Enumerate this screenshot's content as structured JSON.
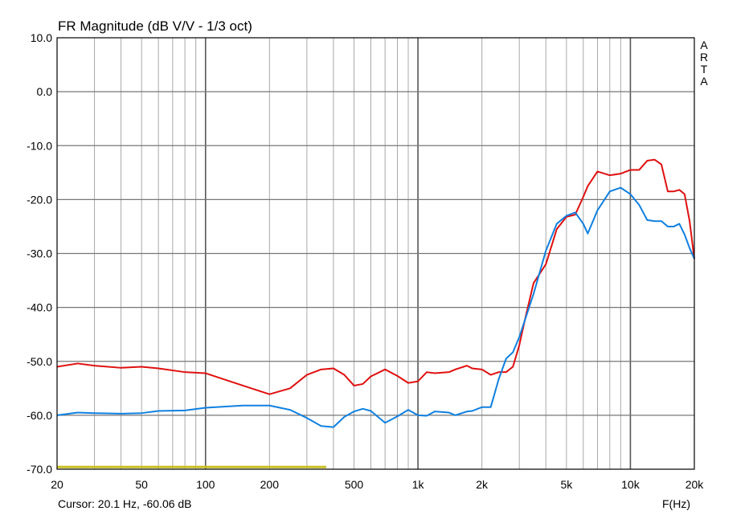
{
  "chart_data": {
    "type": "line",
    "title": "FR Magnitude (dB V/V - 1/3 oct)",
    "xlabel": "F(Hz)",
    "ylabel": "",
    "x_scale": "log",
    "xlim": [
      20,
      20000
    ],
    "ylim": [
      -70,
      10
    ],
    "grid": true,
    "watermark": [
      "A",
      "R",
      "T",
      "A"
    ],
    "cursor_text": "Cursor: 20.1 Hz, -60.06 dB",
    "x_ticks": [
      {
        "value": 20,
        "label": "20"
      },
      {
        "value": 50,
        "label": "50"
      },
      {
        "value": 100,
        "label": "100"
      },
      {
        "value": 200,
        "label": "200"
      },
      {
        "value": 500,
        "label": "500"
      },
      {
        "value": 1000,
        "label": "1k"
      },
      {
        "value": 2000,
        "label": "2k"
      },
      {
        "value": 5000,
        "label": "5k"
      },
      {
        "value": 10000,
        "label": "10k"
      },
      {
        "value": 20000,
        "label": "20k"
      }
    ],
    "y_ticks": [
      {
        "value": 10,
        "label": "10.0"
      },
      {
        "value": 0,
        "label": "0.0"
      },
      {
        "value": -10,
        "label": "-10.0"
      },
      {
        "value": -20,
        "label": "-20.0"
      },
      {
        "value": -30,
        "label": "-30.0"
      },
      {
        "value": -40,
        "label": "-40.0"
      },
      {
        "value": -50,
        "label": "-50.0"
      },
      {
        "value": -60,
        "label": "-60.0"
      },
      {
        "value": -70,
        "label": "-70.0"
      }
    ],
    "series": [
      {
        "color": "#e01010",
        "x": [
          20,
          25,
          30,
          40,
          50,
          60,
          80,
          100,
          150,
          200,
          250,
          300,
          350,
          400,
          450,
          500,
          550,
          600,
          700,
          800,
          900,
          1000,
          1100,
          1200,
          1400,
          1500,
          1700,
          1800,
          2000,
          2200,
          2400,
          2600,
          2800,
          3000,
          3200,
          3500,
          4000,
          4500,
          5000,
          5500,
          6000,
          6300,
          7000,
          8000,
          9000,
          10000,
          11000,
          12000,
          13000,
          14000,
          15000,
          16000,
          17000,
          18000,
          19000,
          20000
        ],
        "y": [
          -51,
          -50.4,
          -50.8,
          -51.2,
          -51,
          -51.3,
          -52,
          -52.2,
          -54.5,
          -56.1,
          -55,
          -52.5,
          -51.5,
          -51.3,
          -52.5,
          -54.5,
          -54.2,
          -52.8,
          -51.5,
          -52.7,
          -54,
          -53.7,
          -52,
          -52.2,
          -52,
          -51.5,
          -50.8,
          -51.3,
          -51.5,
          -52.5,
          -52,
          -52,
          -51,
          -47,
          -42,
          -35.5,
          -32,
          -25.5,
          -23.2,
          -22.8,
          -19.5,
          -17.5,
          -14.8,
          -15.5,
          -15.2,
          -14.5,
          -14.5,
          -12.8,
          -12.6,
          -13.5,
          -18.5,
          -18.5,
          -18.2,
          -19,
          -24,
          -31
        ]
      },
      {
        "color": "#1080e0",
        "x": [
          20,
          25,
          30,
          40,
          50,
          60,
          80,
          100,
          150,
          200,
          250,
          300,
          350,
          400,
          450,
          500,
          550,
          600,
          700,
          800,
          900,
          1000,
          1100,
          1200,
          1400,
          1500,
          1700,
          1800,
          2000,
          2200,
          2400,
          2600,
          2800,
          3000,
          3500,
          4000,
          4500,
          5000,
          5500,
          6000,
          6300,
          7000,
          8000,
          9000,
          10000,
          11000,
          12000,
          13000,
          14000,
          15000,
          16000,
          17000,
          18000,
          19000,
          20000
        ],
        "y": [
          -60,
          -59.5,
          -59.6,
          -59.7,
          -59.6,
          -59.2,
          -59.1,
          -58.6,
          -58.2,
          -58.2,
          -59,
          -60.5,
          -62,
          -62.2,
          -60.3,
          -59.3,
          -58.8,
          -59.2,
          -61.4,
          -60.2,
          -59,
          -60,
          -60.1,
          -59.3,
          -59.5,
          -60,
          -59.3,
          -59.2,
          -58.5,
          -58.5,
          -53.3,
          -49.5,
          -48.3,
          -45.5,
          -37.5,
          -29.5,
          -24.5,
          -23,
          -22.4,
          -24.5,
          -26.3,
          -22,
          -18.5,
          -17.8,
          -19,
          -21,
          -23.8,
          -24,
          -24,
          -25,
          -25,
          -24.5,
          -26.5,
          -29,
          -31
        ]
      },
      {
        "color": "#c8c020",
        "x": [
          20,
          370
        ],
        "y": [
          -69.6,
          -69.6
        ]
      }
    ]
  }
}
